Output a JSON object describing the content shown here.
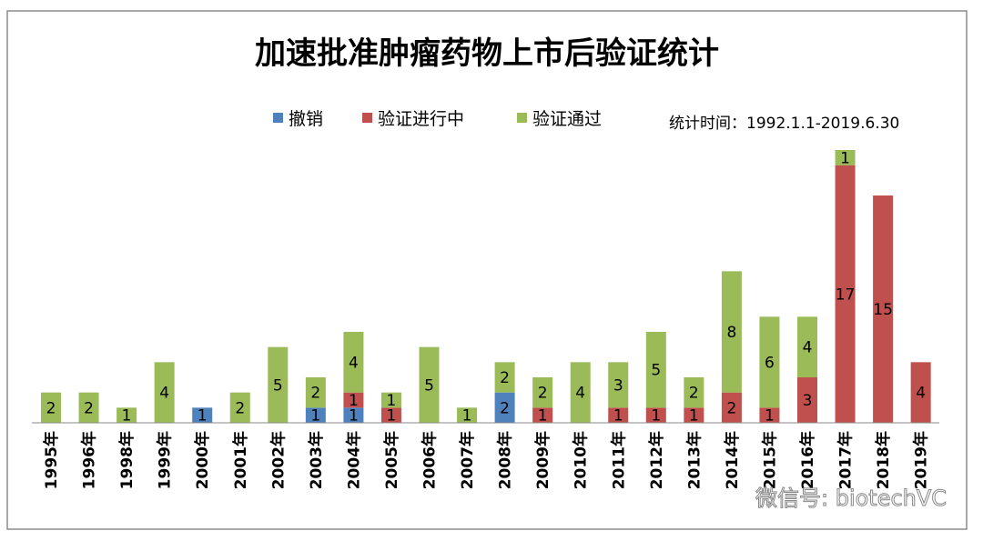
{
  "chart_data": {
    "type": "bar",
    "stacked": true,
    "title": "加速批准肿瘤药物上市后验证统计",
    "note": "统计时间：1992.1.1-2019.6.30",
    "legend_position": "top",
    "xlabel": "",
    "ylabel": "",
    "ylim": [
      0,
      18
    ],
    "grid": false,
    "categories": [
      "1995年",
      "1996年",
      "1998年",
      "1999年",
      "2000年",
      "2001年",
      "2002年",
      "2003年",
      "2004年",
      "2005年",
      "2006年",
      "2007年",
      "2008年",
      "2009年",
      "2010年",
      "2011年",
      "2012年",
      "2013年",
      "2014年",
      "2015年",
      "2016年",
      "2017年",
      "2018年",
      "2019年"
    ],
    "series": [
      {
        "name": "撤销",
        "color": "#4f81bd",
        "values": [
          0,
          0,
          0,
          0,
          1,
          0,
          0,
          1,
          1,
          0,
          0,
          0,
          2,
          0,
          0,
          0,
          0,
          0,
          0,
          0,
          0,
          0,
          0,
          0
        ]
      },
      {
        "name": "验证进行中",
        "color": "#c0504d",
        "values": [
          0,
          0,
          0,
          0,
          0,
          0,
          0,
          0,
          1,
          1,
          0,
          0,
          0,
          1,
          0,
          1,
          1,
          1,
          2,
          1,
          3,
          17,
          15,
          4
        ]
      },
      {
        "name": "验证通过",
        "color": "#9bbb59",
        "values": [
          2,
          2,
          1,
          4,
          0,
          2,
          5,
          2,
          4,
          1,
          5,
          1,
          2,
          2,
          4,
          3,
          5,
          2,
          8,
          6,
          4,
          1,
          0,
          0
        ]
      }
    ]
  },
  "watermark": "微信号: biotechVC"
}
